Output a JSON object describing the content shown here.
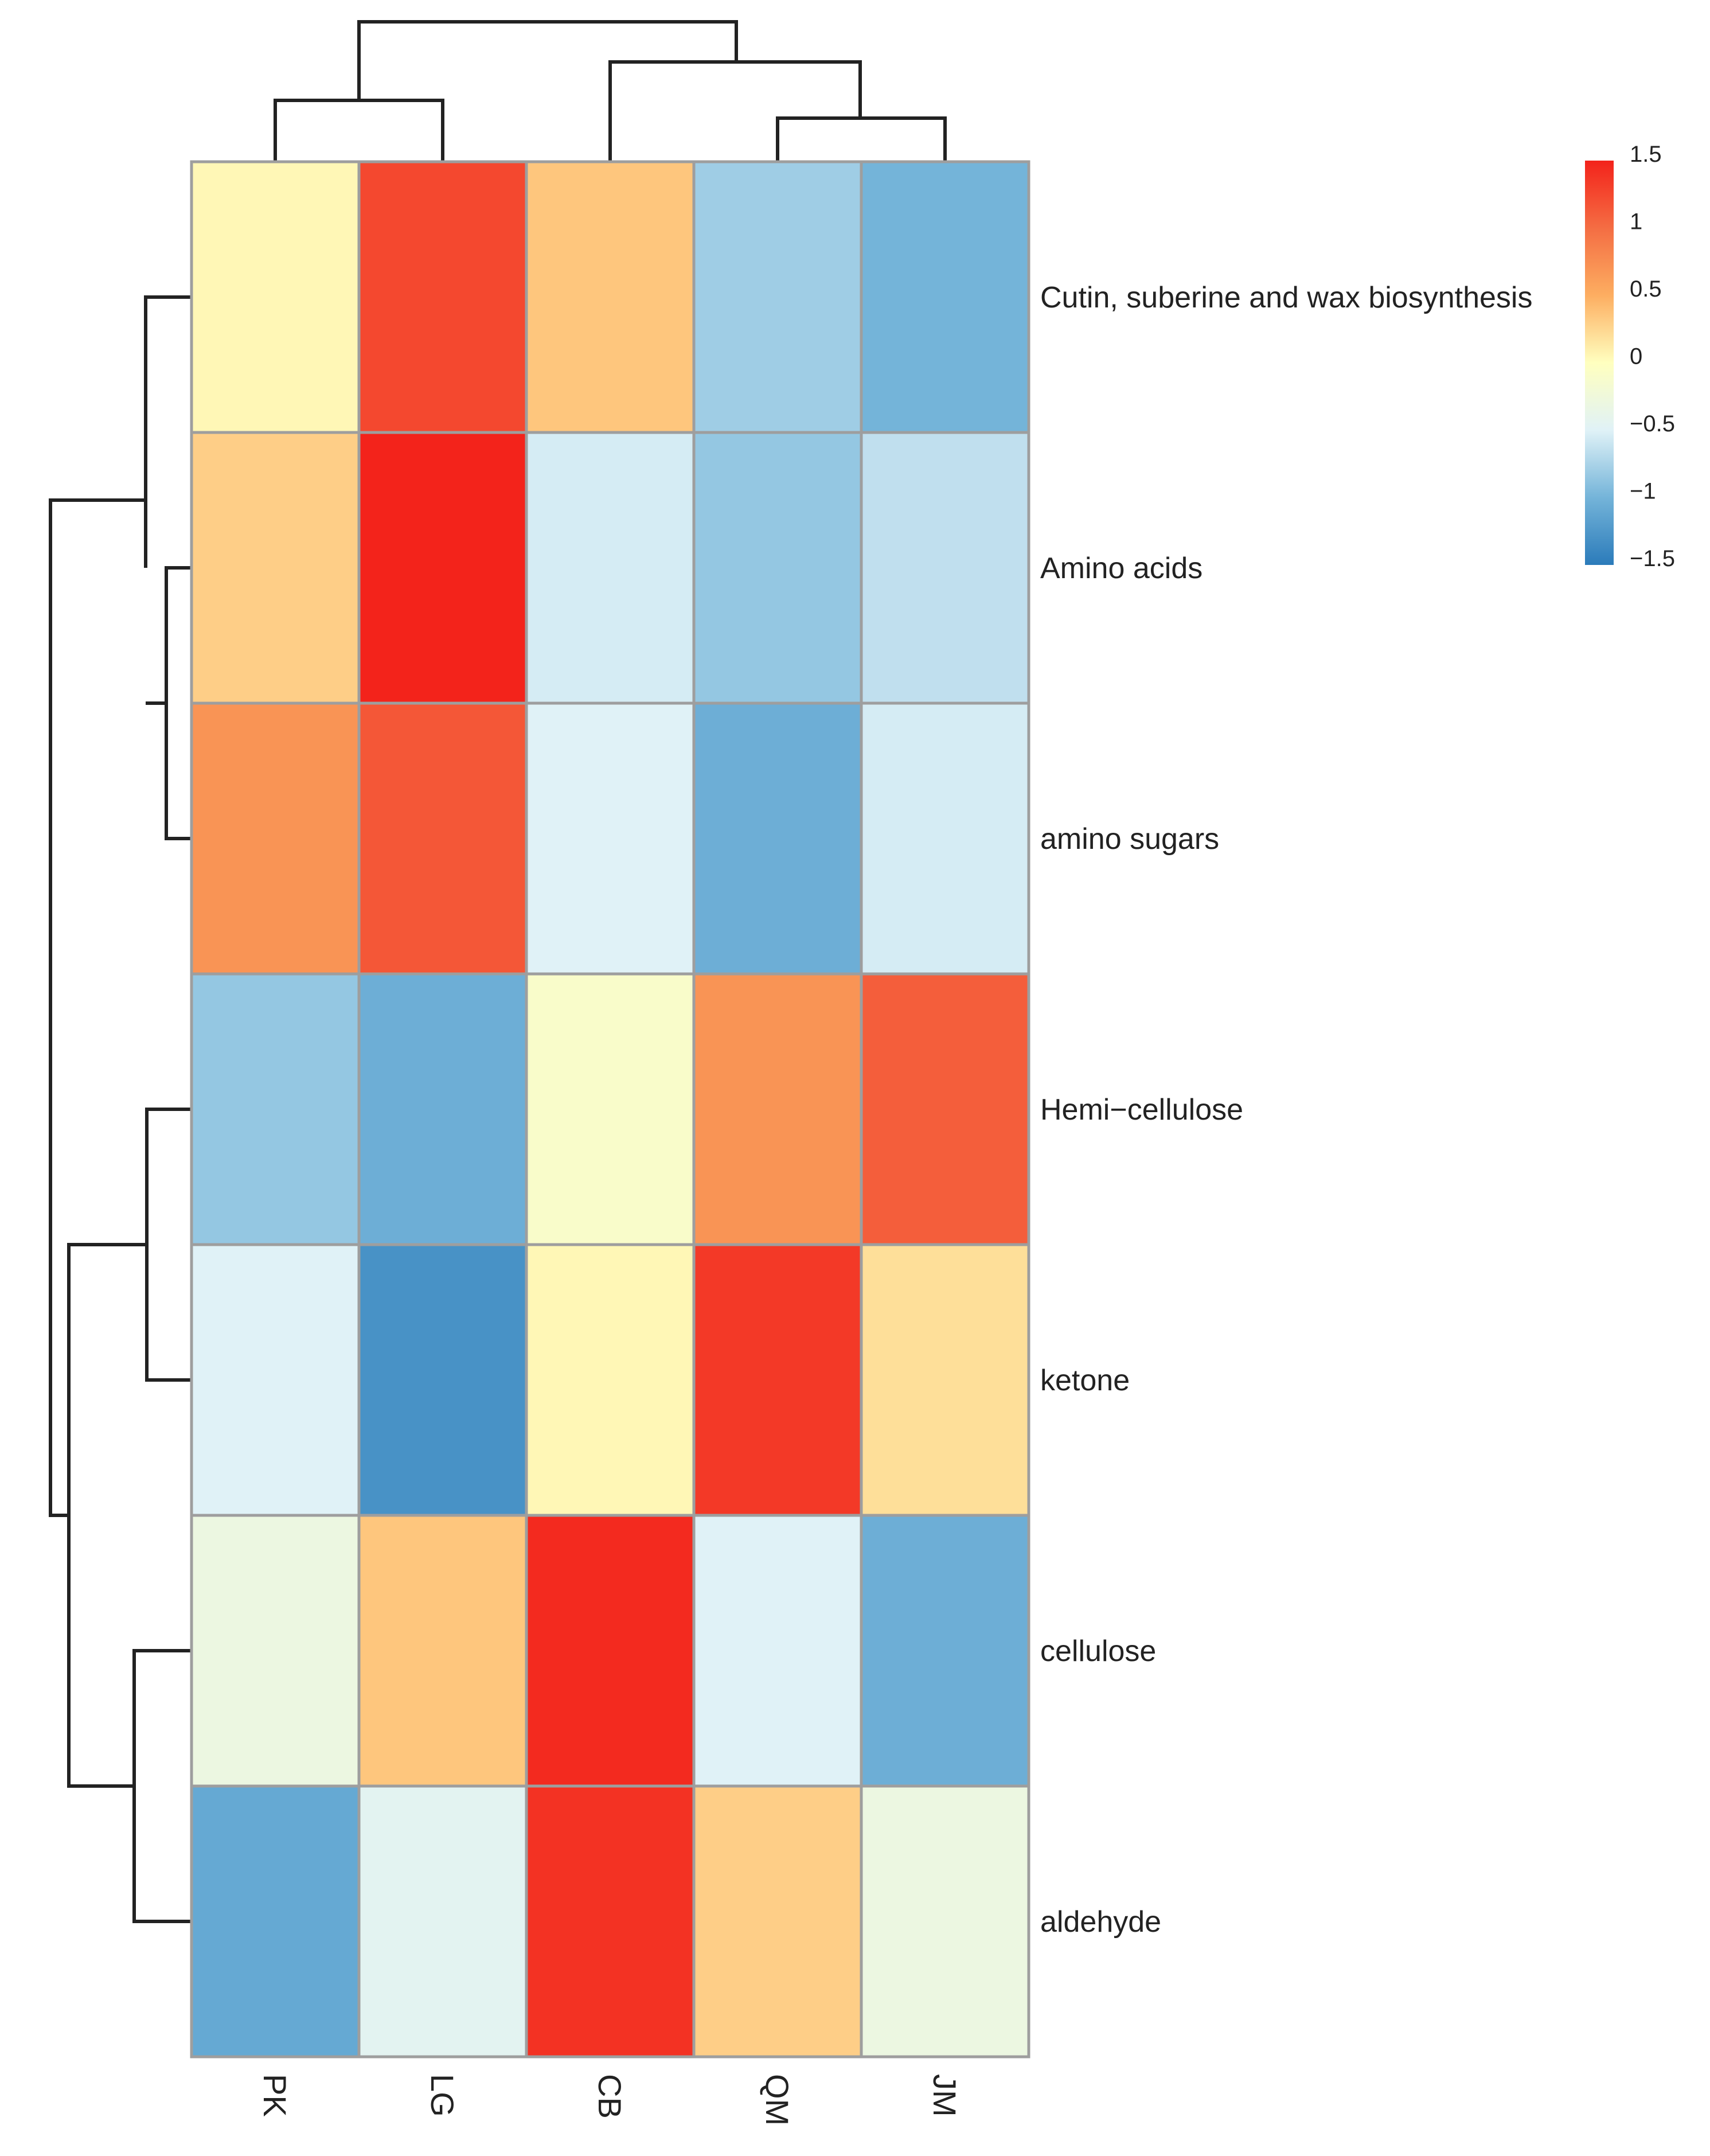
{
  "chart_data": {
    "type": "heatmap",
    "title": "",
    "rows": [
      "Cutin, suberine and wax biosynthesis",
      "Amino acids",
      "amino sugars",
      "Hemi−cellulose",
      "ketone",
      "cellulose",
      "aldehyde"
    ],
    "columns": [
      "PK",
      "LG",
      "CB",
      "QM",
      "JM"
    ],
    "values": [
      [
        0.05,
        1.25,
        0.35,
        -0.8,
        -1.0
      ],
      [
        0.3,
        1.5,
        -0.55,
        -0.85,
        -0.65
      ],
      [
        0.7,
        1.15,
        -0.5,
        -1.05,
        -0.55
      ],
      [
        -0.85,
        -1.05,
        -0.1,
        0.7,
        1.1
      ],
      [
        -0.5,
        -1.3,
        0.05,
        1.35,
        0.2
      ],
      [
        -0.3,
        0.35,
        1.45,
        -0.5,
        -1.05
      ],
      [
        -1.1,
        -0.45,
        1.4,
        0.3,
        -0.3
      ]
    ],
    "color_scale": {
      "min": -1.5,
      "max": 1.5,
      "stops": [
        "#2b7bba",
        "#74b4d9",
        "#e0f2f7",
        "#ffffbf",
        "#fdae61",
        "#f46d43",
        "#f3231b"
      ]
    },
    "legend": {
      "position": "top-right",
      "ticks": [
        "1.5",
        "1",
        "0.5",
        "0",
        "−0.5",
        "−1",
        "−1.5"
      ]
    },
    "column_dendrogram": [
      [
        "PK",
        "LG"
      ],
      [
        [
          "QM",
          "JM"
        ],
        "CB"
      ]
    ],
    "row_dendrogram": [
      [
        [
          "Amino acids",
          "amino sugars"
        ],
        "Cutin, suberine and wax biosynthesis"
      ],
      [
        [
          "Hemi−cellulose",
          "ketone"
        ],
        [
          "cellulose",
          "aldehyde"
        ]
      ]
    ]
  }
}
